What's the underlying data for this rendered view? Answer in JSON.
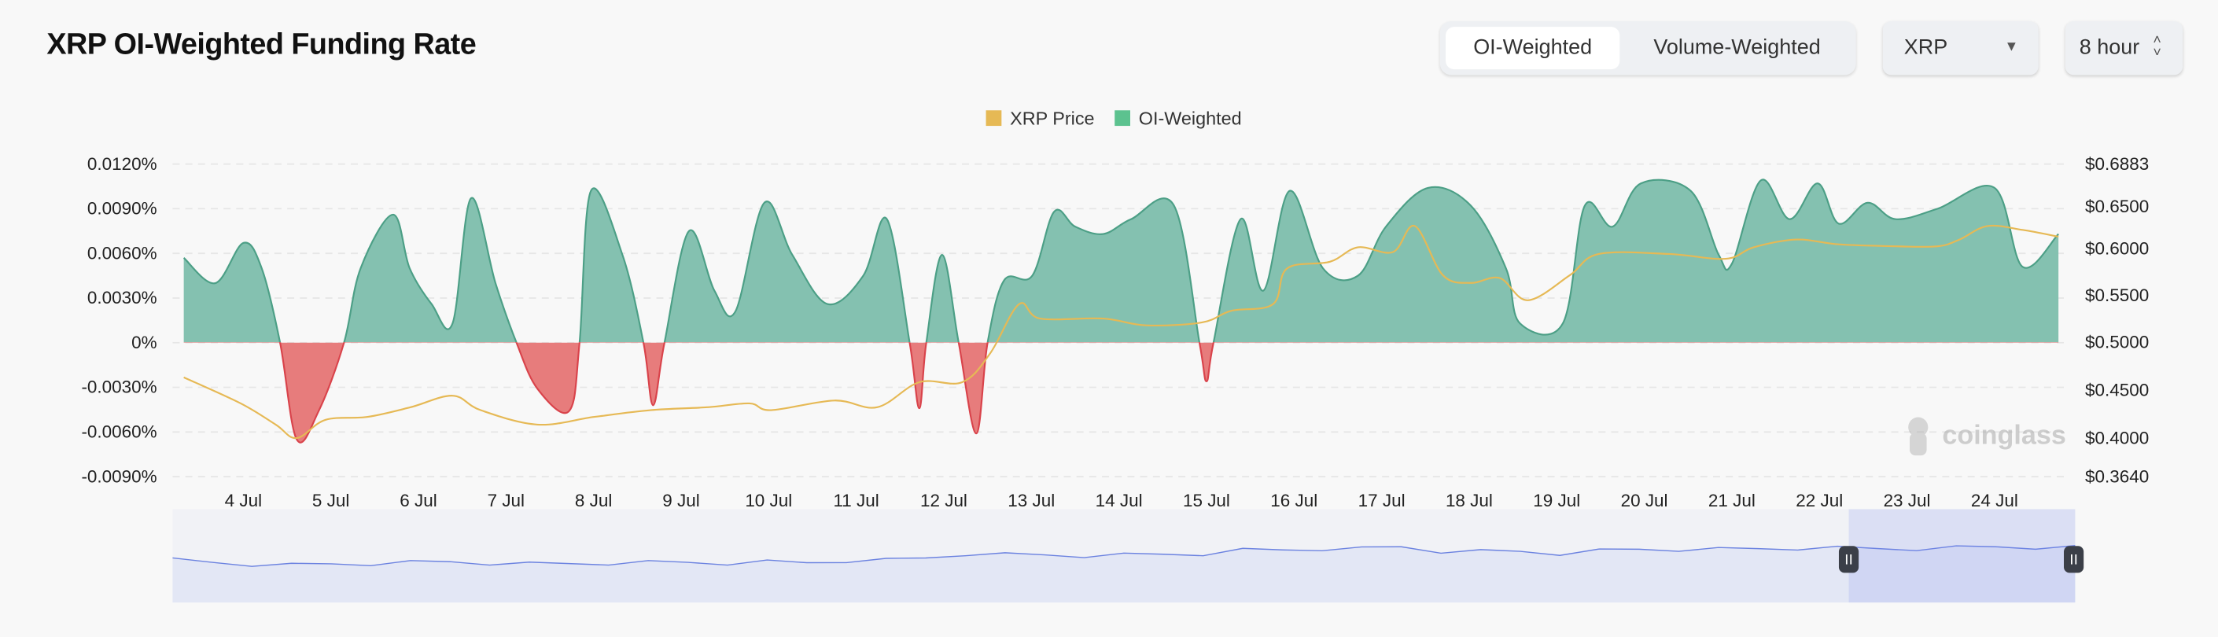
{
  "header": {
    "title": "XRP OI-Weighted Funding Rate"
  },
  "controls": {
    "tabs": [
      {
        "label": "OI-Weighted",
        "active": true
      },
      {
        "label": "Volume-Weighted",
        "active": false
      }
    ],
    "symbol_select": "XRP",
    "interval_select": "8 hour"
  },
  "watermark": "coinglass",
  "colors": {
    "positive": "#84c1b0",
    "positive_line": "#4c9f86",
    "negative": "#e77c7c",
    "negative_line": "#d9434b",
    "price": "#e6b955",
    "navigator": "#6b82e0"
  },
  "chart_data": {
    "type": "area",
    "title": "XRP OI-Weighted Funding Rate",
    "x_unit": "days since 4 Jul 00:00",
    "legend": [
      {
        "name": "XRP Price",
        "color": "#e6b955"
      },
      {
        "name": "OI-Weighted",
        "color": "#5cc28f"
      }
    ],
    "legend_position": "top-center",
    "x_ticks": [
      "4 Jul",
      "5 Jul",
      "6 Jul",
      "7 Jul",
      "8 Jul",
      "9 Jul",
      "10 Jul",
      "11 Jul",
      "12 Jul",
      "13 Jul",
      "14 Jul",
      "15 Jul",
      "16 Jul",
      "17 Jul",
      "18 Jul",
      "19 Jul",
      "20 Jul",
      "21 Jul",
      "22 Jul",
      "23 Jul",
      "24 Jul"
    ],
    "y_left_ticks": [
      "0.0120%",
      "0.0090%",
      "0.0060%",
      "0.0030%",
      "0%",
      "-0.0030%",
      "-0.0060%",
      "-0.0090%"
    ],
    "y_left_range": [
      -0.009,
      0.012
    ],
    "y_right_ticks": [
      "$0.6883",
      "$0.6500",
      "$0.6000",
      "$0.5500",
      "$0.5000",
      "$0.4500",
      "$0.4000",
      "$0.3640"
    ],
    "y_right_range": [
      0.364,
      0.6883
    ],
    "grid": true,
    "series": [
      {
        "name": "OI-Weighted",
        "unit": "%",
        "points": [
          [
            -0.68,
            0.0057
          ],
          [
            -0.32,
            0.004
          ],
          [
            0,
            0.0067
          ],
          [
            0.21,
            0.005
          ],
          [
            0.42,
            0
          ],
          [
            0.61,
            -0.0065
          ],
          [
            0.86,
            -0.0046
          ],
          [
            1.15,
            0
          ],
          [
            1.34,
            0.005
          ],
          [
            1.71,
            0.0086
          ],
          [
            1.9,
            0.005
          ],
          [
            2.15,
            0.0026
          ],
          [
            2.39,
            0.0013
          ],
          [
            2.6,
            0.0097
          ],
          [
            2.88,
            0.004
          ],
          [
            3.12,
            0
          ],
          [
            3.36,
            -0.0031
          ],
          [
            3.72,
            -0.0046
          ],
          [
            3.84,
            0
          ],
          [
            3.97,
            0.0102
          ],
          [
            4.33,
            0.0059
          ],
          [
            4.57,
            0
          ],
          [
            4.68,
            -0.0042
          ],
          [
            4.81,
            0
          ],
          [
            5.09,
            0.0075
          ],
          [
            5.38,
            0.0035
          ],
          [
            5.62,
            0.0021
          ],
          [
            5.95,
            0.0094
          ],
          [
            6.27,
            0.0059
          ],
          [
            6.67,
            0.0026
          ],
          [
            7.08,
            0.0045
          ],
          [
            7.35,
            0.0083
          ],
          [
            7.61,
            0
          ],
          [
            7.72,
            -0.0044
          ],
          [
            7.8,
            0
          ],
          [
            7.98,
            0.0059
          ],
          [
            8.17,
            0
          ],
          [
            8.37,
            -0.0061
          ],
          [
            8.5,
            0
          ],
          [
            8.69,
            0.0042
          ],
          [
            9.01,
            0.0045
          ],
          [
            9.26,
            0.0088
          ],
          [
            9.5,
            0.0078
          ],
          [
            9.82,
            0.0073
          ],
          [
            10.14,
            0.0083
          ],
          [
            10.63,
            0.0092
          ],
          [
            10.92,
            0
          ],
          [
            11.0,
            -0.0026
          ],
          [
            11.08,
            0
          ],
          [
            11.39,
            0.0083
          ],
          [
            11.65,
            0.0035
          ],
          [
            11.95,
            0.0102
          ],
          [
            12.33,
            0.005
          ],
          [
            12.73,
            0.0045
          ],
          [
            13.05,
            0.0078
          ],
          [
            13.53,
            0.0104
          ],
          [
            14.02,
            0.0092
          ],
          [
            14.42,
            0.005
          ],
          [
            14.58,
            0.0013
          ],
          [
            15.07,
            0.0013
          ],
          [
            15.32,
            0.0092
          ],
          [
            15.64,
            0.0078
          ],
          [
            15.96,
            0.0107
          ],
          [
            16.53,
            0.0102
          ],
          [
            16.85,
            0.0059
          ],
          [
            17.0,
            0.0053
          ],
          [
            17.33,
            0.0109
          ],
          [
            17.66,
            0.0083
          ],
          [
            17.98,
            0.0107
          ],
          [
            18.22,
            0.008
          ],
          [
            18.55,
            0.0094
          ],
          [
            18.87,
            0.0083
          ],
          [
            19.35,
            0.009
          ],
          [
            20.0,
            0.0104
          ],
          [
            20.32,
            0.0051
          ],
          [
            20.73,
            0.0073
          ]
        ]
      },
      {
        "name": "XRP Price",
        "unit": "USD",
        "points": [
          [
            -0.68,
            0.467
          ],
          [
            -0.03,
            0.44
          ],
          [
            0.37,
            0.418
          ],
          [
            0.61,
            0.404
          ],
          [
            0.94,
            0.423
          ],
          [
            1.42,
            0.426
          ],
          [
            1.91,
            0.436
          ],
          [
            2.39,
            0.448
          ],
          [
            2.71,
            0.433
          ],
          [
            3.36,
            0.418
          ],
          [
            4.01,
            0.426
          ],
          [
            4.65,
            0.433
          ],
          [
            5.3,
            0.436
          ],
          [
            5.78,
            0.44
          ],
          [
            6.03,
            0.433
          ],
          [
            6.75,
            0.443
          ],
          [
            7.24,
            0.436
          ],
          [
            7.72,
            0.462
          ],
          [
            8.21,
            0.462
          ],
          [
            8.53,
            0.492
          ],
          [
            8.86,
            0.543
          ],
          [
            9.1,
            0.528
          ],
          [
            9.82,
            0.528
          ],
          [
            10.31,
            0.521
          ],
          [
            10.95,
            0.524
          ],
          [
            11.28,
            0.536
          ],
          [
            11.76,
            0.543
          ],
          [
            11.92,
            0.58
          ],
          [
            12.41,
            0.587
          ],
          [
            12.73,
            0.602
          ],
          [
            13.13,
            0.597
          ],
          [
            13.38,
            0.624
          ],
          [
            13.7,
            0.573
          ],
          [
            14.02,
            0.565
          ],
          [
            14.35,
            0.57
          ],
          [
            14.67,
            0.547
          ],
          [
            15.15,
            0.573
          ],
          [
            15.48,
            0.595
          ],
          [
            16.28,
            0.595
          ],
          [
            16.93,
            0.59
          ],
          [
            17.25,
            0.602
          ],
          [
            17.74,
            0.61
          ],
          [
            18.22,
            0.605
          ],
          [
            18.87,
            0.603
          ],
          [
            19.35,
            0.603
          ],
          [
            19.6,
            0.61
          ],
          [
            19.92,
            0.624
          ],
          [
            20.32,
            0.62
          ],
          [
            20.73,
            0.613
          ]
        ]
      }
    ],
    "navigator": {
      "selected_range_fraction": [
        0.881,
        1.0
      ]
    }
  }
}
